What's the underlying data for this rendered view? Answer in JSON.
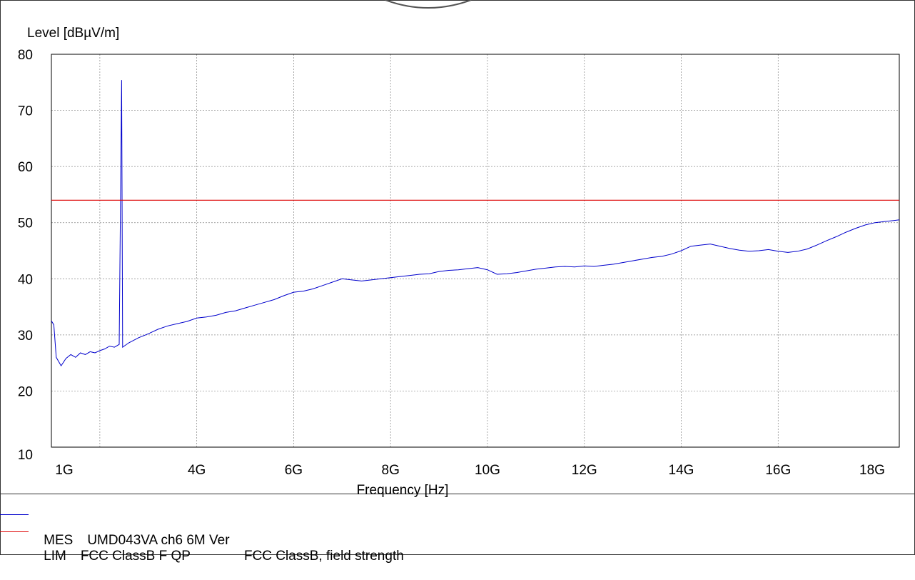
{
  "chart_data": {
    "type": "line",
    "ylabel": "Level [dBµV/m]",
    "xlabel": "Frequency [Hz]",
    "ylim": [
      10,
      80
    ],
    "yticks": [
      80,
      70,
      60,
      50,
      40,
      30,
      20,
      10
    ],
    "xlim": [
      1,
      18.5
    ],
    "xticks": [
      {
        "label": "1G",
        "value": 1.0
      },
      {
        "label": "4G",
        "value": 4.0
      },
      {
        "label": "6G",
        "value": 6.0
      },
      {
        "label": "8G",
        "value": 8.0
      },
      {
        "label": "10G",
        "value": 10.0
      },
      {
        "label": "12G",
        "value": 12.0
      },
      {
        "label": "14G",
        "value": 14.0
      },
      {
        "label": "16G",
        "value": 16.0
      },
      {
        "label": "18G",
        "value": 18.0
      }
    ],
    "grid": true,
    "series": [
      {
        "name": "MES",
        "label": "UMD043VA ch6 6M Ver",
        "color": "#0000cc",
        "x": [
          1.0,
          1.05,
          1.1,
          1.2,
          1.3,
          1.4,
          1.5,
          1.6,
          1.7,
          1.8,
          1.9,
          2.0,
          2.1,
          2.2,
          2.3,
          2.4,
          2.45,
          2.47,
          2.5,
          2.6,
          2.8,
          3.0,
          3.2,
          3.4,
          3.6,
          3.8,
          4.0,
          4.2,
          4.4,
          4.6,
          4.8,
          5.0,
          5.2,
          5.4,
          5.6,
          5.8,
          6.0,
          6.2,
          6.4,
          6.6,
          6.8,
          7.0,
          7.2,
          7.4,
          7.6,
          7.8,
          8.0,
          8.2,
          8.4,
          8.6,
          8.8,
          9.0,
          9.2,
          9.4,
          9.6,
          9.8,
          10.0,
          10.2,
          10.4,
          10.6,
          10.8,
          11.0,
          11.2,
          11.4,
          11.6,
          11.8,
          12.0,
          12.2,
          12.4,
          12.6,
          12.8,
          13.0,
          13.2,
          13.4,
          13.6,
          13.8,
          14.0,
          14.2,
          14.4,
          14.6,
          14.8,
          15.0,
          15.2,
          15.4,
          15.6,
          15.8,
          16.0,
          16.2,
          16.4,
          16.6,
          16.8,
          17.0,
          17.2,
          17.4,
          17.6,
          17.8,
          18.0,
          18.2,
          18.4,
          18.5
        ],
        "y": [
          32.5,
          31.8,
          26.0,
          24.5,
          25.8,
          26.5,
          26.0,
          26.8,
          26.5,
          27.0,
          26.8,
          27.2,
          27.5,
          28.0,
          27.8,
          28.3,
          75.4,
          27.8,
          28.0,
          28.6,
          29.5,
          30.2,
          31.0,
          31.6,
          32.0,
          32.4,
          33.0,
          33.2,
          33.5,
          34.0,
          34.3,
          34.8,
          35.3,
          35.8,
          36.3,
          37.0,
          37.6,
          37.8,
          38.2,
          38.8,
          39.4,
          40.0,
          39.8,
          39.6,
          39.8,
          40.0,
          40.2,
          40.4,
          40.6,
          40.8,
          40.9,
          41.3,
          41.5,
          41.6,
          41.8,
          42.0,
          41.6,
          40.8,
          40.9,
          41.1,
          41.4,
          41.7,
          41.9,
          42.1,
          42.2,
          42.1,
          42.3,
          42.2,
          42.4,
          42.6,
          42.9,
          43.2,
          43.5,
          43.8,
          44.0,
          44.4,
          45.0,
          45.8,
          46.0,
          46.2,
          45.8,
          45.4,
          45.1,
          44.9,
          45.0,
          45.2,
          44.9,
          44.7,
          44.9,
          45.3,
          46.0,
          46.8,
          47.5,
          48.3,
          49.0,
          49.6,
          50.0,
          50.2,
          50.4,
          50.5
        ]
      },
      {
        "name": "LIM",
        "label": "FCC ClassB F QP",
        "description": "FCC ClassB, field strength",
        "color": "#dd0000",
        "x": [
          1.0,
          18.5
        ],
        "y": [
          54,
          54
        ]
      }
    ]
  }
}
